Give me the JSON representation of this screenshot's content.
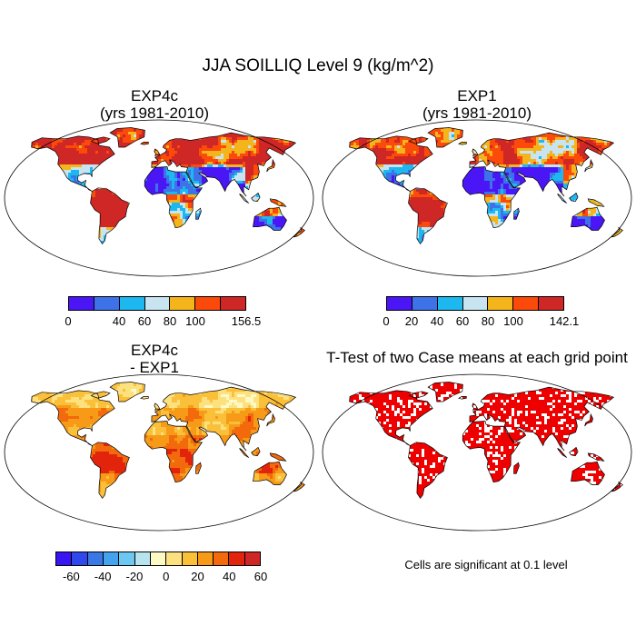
{
  "title": "JJA SOILLIQ Level 9 (kg/m^2)",
  "panels": [
    {
      "title_line1": "EXP4c",
      "title_line2": "(yrs 1981-2010)",
      "fill": "magnitude_hi"
    },
    {
      "title_line1": "EXP1",
      "title_line2": "(yrs 1981-2010)",
      "fill": "magnitude"
    },
    {
      "title_line1": "EXP4c",
      "title_line2": "- EXP1",
      "fill": "difference"
    },
    {
      "title_line1": "T-Test of two Case means at each grid point",
      "title_line2": "",
      "fill": "significance"
    }
  ],
  "colorbars": [
    {
      "colors": [
        "#4a16f5",
        "#3d72e8",
        "#1cb8ef",
        "#c7e4f0",
        "#f4b41c",
        "#fb4a0a",
        "#cf2626"
      ],
      "labels": [
        "0",
        "40",
        "60",
        "80",
        "100",
        "156.5"
      ],
      "label_slots": [
        0,
        2,
        3,
        4,
        5,
        7
      ]
    },
    {
      "colors": [
        "#4a16f5",
        "#3d72e8",
        "#1cb8ef",
        "#c7e4f0",
        "#f4b41c",
        "#fb4a0a",
        "#cf2626"
      ],
      "labels": [
        "0",
        "20",
        "40",
        "60",
        "80",
        "100",
        "142.1"
      ],
      "label_slots": [
        0,
        1,
        2,
        3,
        4,
        5,
        7
      ]
    },
    {
      "colors": [
        "#3a14f2",
        "#2f48ec",
        "#3a78e6",
        "#43a3ee",
        "#6cc8f0",
        "#b7e3ef",
        "#fdf9c4",
        "#fde17e",
        "#fbc03a",
        "#f69a18",
        "#f26a0c",
        "#e3240c",
        "#cf2626"
      ],
      "labels": [
        "-60",
        "-40",
        "-20",
        "0",
        "20",
        "40",
        "60"
      ],
      "label_slots": [
        1,
        3,
        5,
        7,
        9,
        11,
        13
      ]
    }
  ],
  "significance_note": "Cells are significant at 0.1 level",
  "map_colors": {
    "land_outline": "#000000",
    "significant": "#ee0000",
    "ocean": "#ffffff"
  }
}
